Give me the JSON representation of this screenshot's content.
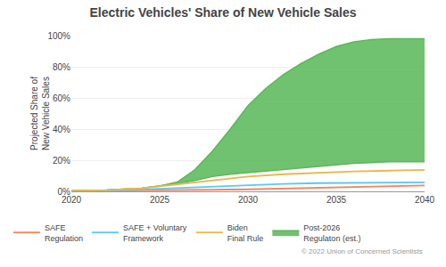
{
  "chart_data": {
    "type": "line",
    "title": "Electric Vehicles' Share of New Vehicle Sales",
    "ylabel": "Projected Share of\nNew Vehicle Sales",
    "xlim": [
      2020,
      2040
    ],
    "ylim": [
      0,
      100
    ],
    "xticks": [
      2020,
      2025,
      2030,
      2035,
      2040
    ],
    "yticks": [
      {
        "value": 0,
        "label": "0%"
      },
      {
        "value": 20,
        "label": "20%"
      },
      {
        "value": 40,
        "label": "40%"
      },
      {
        "value": 60,
        "label": "60%"
      },
      {
        "value": 80,
        "label": "80%"
      },
      {
        "value": 100,
        "label": "100%"
      }
    ],
    "grid": true,
    "legend": "bottom",
    "annotations": [
      "© 2022 Union of Concerned Scientists"
    ],
    "series": [
      {
        "name": "SAFE\nRegulation",
        "type": "line",
        "color": "#f4845f",
        "x": [
          2020,
          2022,
          2024,
          2026,
          2028,
          2030,
          2032,
          2034,
          2036,
          2038,
          2040
        ],
        "values": [
          0.3,
          0.4,
          0.6,
          0.8,
          1.0,
          1.3,
          1.8,
          2.3,
          2.8,
          3.2,
          3.8
        ]
      },
      {
        "name": "SAFE + Voluntary\nFramework",
        "type": "line",
        "color": "#5bc8f5",
        "x": [
          2020,
          2022,
          2024,
          2026,
          2028,
          2030,
          2032,
          2034,
          2036,
          2038,
          2040
        ],
        "values": [
          0.3,
          0.5,
          1.2,
          2.2,
          3.2,
          4.2,
          4.8,
          5.3,
          5.5,
          5.7,
          5.8
        ]
      },
      {
        "name": "Biden\nFinal Rule",
        "type": "line",
        "color": "#e8b84b",
        "x": [
          2020,
          2022,
          2024,
          2026,
          2028,
          2030,
          2032,
          2034,
          2036,
          2038,
          2040
        ],
        "values": [
          0.3,
          0.8,
          2.0,
          4.5,
          7.0,
          9.5,
          11.0,
          12.0,
          12.8,
          13.3,
          13.8
        ]
      },
      {
        "name": "Post-2026\nRegulaton (est.)",
        "type": "band",
        "color": "#5cb85c",
        "x": [
          2020,
          2022,
          2024,
          2025,
          2026,
          2027,
          2028,
          2029,
          2030,
          2031,
          2032,
          2033,
          2034,
          2035,
          2036,
          2037,
          2038,
          2039,
          2040
        ],
        "lower": [
          0.3,
          0.8,
          2.0,
          3.5,
          5.0,
          7.0,
          9.5,
          11.0,
          12.0,
          13.0,
          14.0,
          15.0,
          16.0,
          17.0,
          18.0,
          18.5,
          19.0,
          19.0,
          19.0
        ],
        "upper": [
          0.3,
          0.8,
          2.0,
          3.5,
          6.0,
          14.0,
          26.0,
          40.0,
          55.0,
          66.0,
          75.0,
          82.0,
          88.0,
          93.0,
          96.0,
          97.5,
          98.0,
          98.0,
          98.0
        ]
      }
    ]
  }
}
